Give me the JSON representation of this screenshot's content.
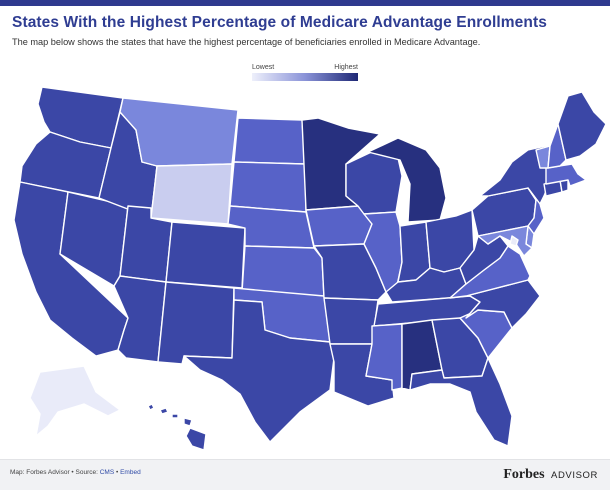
{
  "header": {
    "title": "States With the Highest Percentage of Medicare Advantage Enrollments",
    "subtitle": "The map below shows the states that have the highest percentage of beneficiaries enrolled in Medicare Advantage."
  },
  "legend": {
    "low_label": "Lowest",
    "high_label": "Highest",
    "colors": [
      "#eef0fb",
      "#8a93d8",
      "#1f2875"
    ]
  },
  "footer": {
    "map_credit": "Map: Forbes Advisor",
    "separator": "•",
    "source_prefix": "Source:",
    "source_link": "CMS",
    "embed_link": "Embed",
    "brand_name": "Forbes",
    "brand_suffix": "ADVISOR"
  },
  "map": {
    "shade_colors": [
      "#e9ebf9",
      "#c9cdef",
      "#7a87dc",
      "#5762c8",
      "#3b47a6",
      "#27307f"
    ],
    "states": [
      {
        "code": "WA",
        "shade": 4
      },
      {
        "code": "OR",
        "shade": 4
      },
      {
        "code": "CA",
        "shade": 4
      },
      {
        "code": "NV",
        "shade": 4
      },
      {
        "code": "ID",
        "shade": 4
      },
      {
        "code": "MT",
        "shade": 2
      },
      {
        "code": "WY",
        "shade": 1
      },
      {
        "code": "UT",
        "shade": 4
      },
      {
        "code": "AZ",
        "shade": 4
      },
      {
        "code": "CO",
        "shade": 4
      },
      {
        "code": "NM",
        "shade": 4
      },
      {
        "code": "ND",
        "shade": 3
      },
      {
        "code": "SD",
        "shade": 3
      },
      {
        "code": "NE",
        "shade": 3
      },
      {
        "code": "KS",
        "shade": 3
      },
      {
        "code": "OK",
        "shade": 3
      },
      {
        "code": "TX",
        "shade": 4
      },
      {
        "code": "MN",
        "shade": 5
      },
      {
        "code": "IA",
        "shade": 3
      },
      {
        "code": "MO",
        "shade": 4
      },
      {
        "code": "AR",
        "shade": 4
      },
      {
        "code": "LA",
        "shade": 4
      },
      {
        "code": "WI",
        "shade": 4
      },
      {
        "code": "IL",
        "shade": 3
      },
      {
        "code": "MI",
        "shade": 5
      },
      {
        "code": "IN",
        "shade": 4
      },
      {
        "code": "OH",
        "shade": 4
      },
      {
        "code": "KY",
        "shade": 4
      },
      {
        "code": "TN",
        "shade": 4
      },
      {
        "code": "MS",
        "shade": 3
      },
      {
        "code": "AL",
        "shade": 5
      },
      {
        "code": "GA",
        "shade": 4
      },
      {
        "code": "FL",
        "shade": 4
      },
      {
        "code": "SC",
        "shade": 3
      },
      {
        "code": "NC",
        "shade": 4
      },
      {
        "code": "VA",
        "shade": 3
      },
      {
        "code": "WV",
        "shade": 4
      },
      {
        "code": "PA",
        "shade": 4
      },
      {
        "code": "NY",
        "shade": 4
      },
      {
        "code": "NJ",
        "shade": 3
      },
      {
        "code": "DE",
        "shade": 2
      },
      {
        "code": "MD",
        "shade": 2
      },
      {
        "code": "DC",
        "shade": 0
      },
      {
        "code": "CT",
        "shade": 4
      },
      {
        "code": "RI",
        "shade": 4
      },
      {
        "code": "MA",
        "shade": 3
      },
      {
        "code": "VT",
        "shade": 2
      },
      {
        "code": "NH",
        "shade": 3
      },
      {
        "code": "ME",
        "shade": 4
      },
      {
        "code": "AK",
        "shade": 0
      },
      {
        "code": "HI",
        "shade": 4
      }
    ]
  }
}
